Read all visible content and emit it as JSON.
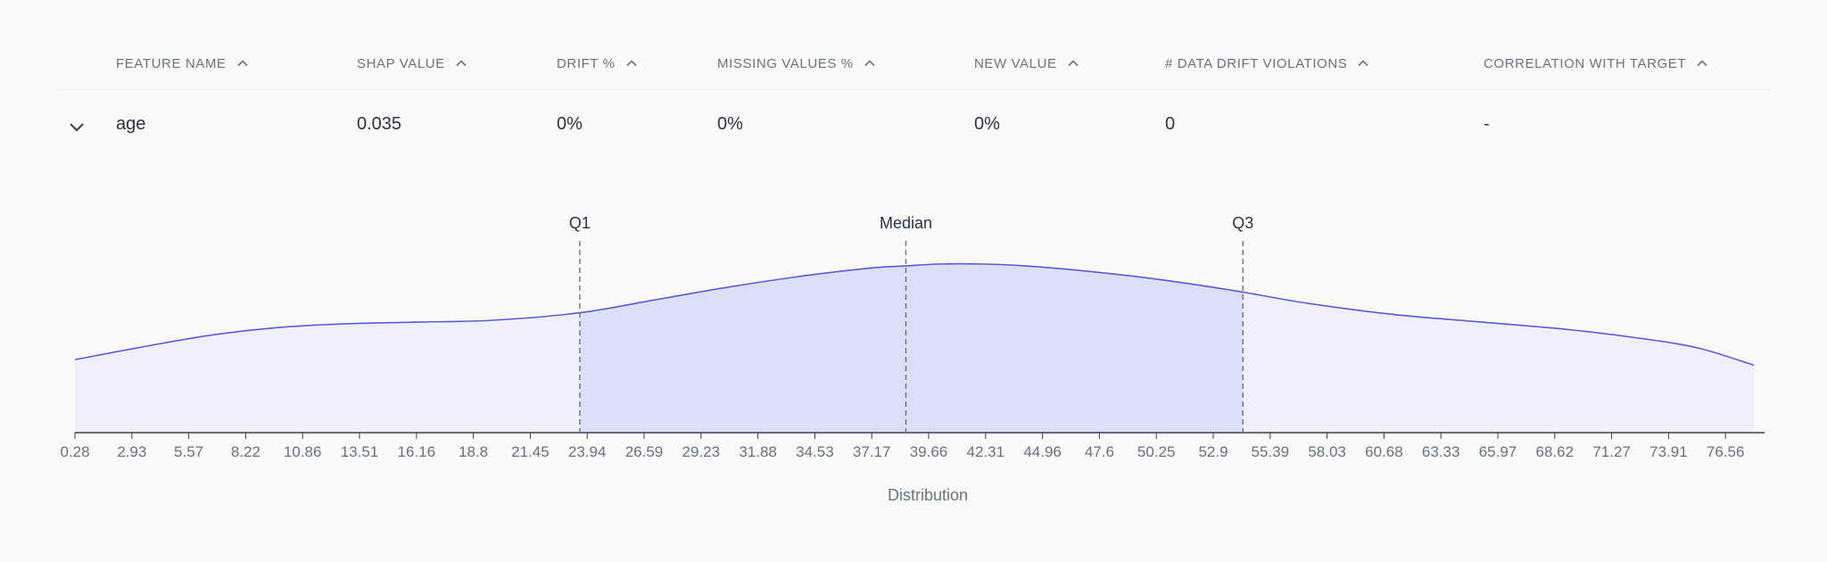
{
  "table": {
    "columns": [
      {
        "key": "feature",
        "label": "FEATURE NAME"
      },
      {
        "key": "shap",
        "label": "SHAP VALUE"
      },
      {
        "key": "drift",
        "label": "DRIFT %"
      },
      {
        "key": "missing",
        "label": "MISSING VALUES %"
      },
      {
        "key": "new",
        "label": "NEW VALUE"
      },
      {
        "key": "violations",
        "label": "# DATA DRIFT VIOLATIONS"
      },
      {
        "key": "corr",
        "label": "CORRELATION WITH TARGET"
      }
    ],
    "sort_icon": "chevron-up-icon",
    "row": {
      "expand_icon": "chevron-down-icon",
      "feature": "age",
      "shap": "0.035",
      "drift": "0%",
      "missing": "0%",
      "new": "0%",
      "violations": "0",
      "corr": "-"
    }
  },
  "chart_data": {
    "type": "area",
    "xlabel": "Distribution",
    "x_tick_labels": [
      "0.28",
      "2.93",
      "5.57",
      "8.22",
      "10.86",
      "13.51",
      "16.16",
      "18.8",
      "21.45",
      "23.94",
      "26.59",
      "29.23",
      "31.88",
      "34.53",
      "37.17",
      "39.66",
      "42.31",
      "44.96",
      "47.6",
      "50.25",
      "52.9",
      "55.39",
      "58.03",
      "60.68",
      "63.33",
      "65.97",
      "68.62",
      "71.27",
      "73.91",
      "76.56"
    ],
    "xlim": [
      0.28,
      77.5
    ],
    "density": [
      [
        0.28,
        0.39
      ],
      [
        3.5,
        0.46
      ],
      [
        6.5,
        0.52
      ],
      [
        9.5,
        0.56
      ],
      [
        12.5,
        0.58
      ],
      [
        16,
        0.59
      ],
      [
        19.5,
        0.6
      ],
      [
        23.5,
        0.64
      ],
      [
        27,
        0.71
      ],
      [
        30.5,
        0.78
      ],
      [
        34,
        0.84
      ],
      [
        37,
        0.88
      ],
      [
        38.5,
        0.89
      ],
      [
        40,
        0.9
      ],
      [
        42,
        0.9
      ],
      [
        44,
        0.89
      ],
      [
        47,
        0.86
      ],
      [
        50,
        0.82
      ],
      [
        53.5,
        0.76
      ],
      [
        57,
        0.69
      ],
      [
        61,
        0.63
      ],
      [
        65,
        0.59
      ],
      [
        69,
        0.55
      ],
      [
        72.5,
        0.5
      ],
      [
        75,
        0.45
      ],
      [
        77.5,
        0.36
      ]
    ],
    "markers": [
      {
        "label": "Q1",
        "x": 23.5
      },
      {
        "label": "Median",
        "x": 38.5
      },
      {
        "label": "Q3",
        "x": 54.0
      }
    ],
    "colors": {
      "line": "#5b5bd6",
      "fill_outer": "#eff0fb",
      "fill_iqr": "#dcdff8",
      "axis": "#3a3d4a",
      "marker": "#6b7081"
    }
  }
}
